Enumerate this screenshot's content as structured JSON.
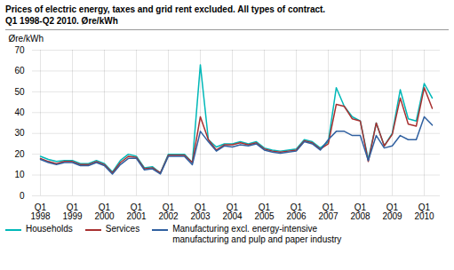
{
  "chart_data": {
    "type": "line",
    "title": "Prices of electric energy, taxes and grid rent excluded. All types of contract.",
    "subtitle": "Q1 1998-Q2 2010. Øre/kWh",
    "y_label": "Øre/kWh",
    "categories": [
      "Q1\n1998",
      null,
      null,
      null,
      "Q1\n1999",
      null,
      null,
      null,
      "Q1\n2000",
      null,
      null,
      null,
      "Q1\n2001",
      null,
      null,
      null,
      "Q1\n2002",
      null,
      null,
      null,
      "Q1\n2003",
      null,
      null,
      null,
      "Q1\n2004",
      null,
      null,
      null,
      "Q1\n2005",
      null,
      null,
      null,
      "Q1\n2006",
      null,
      null,
      null,
      "Q1\n2007",
      null,
      null,
      null,
      "Q1\n2008",
      null,
      null,
      null,
      "Q1\n2009",
      null,
      null,
      null,
      "Q1\n2010",
      null
    ],
    "series": [
      {
        "name": "Households",
        "color": "#00B8B8",
        "values": [
          19,
          17.5,
          16.5,
          17,
          17,
          15.5,
          15.5,
          17,
          15.5,
          11.5,
          17,
          20,
          19,
          13.5,
          14,
          11,
          20,
          20,
          20,
          16,
          63,
          27,
          23.5,
          25,
          25,
          26,
          25,
          26,
          23,
          22,
          21.5,
          22,
          22.5,
          27,
          26,
          23,
          26,
          52,
          43,
          38,
          36,
          17.5,
          35,
          24,
          30,
          51,
          37,
          36,
          54,
          47
        ]
      },
      {
        "name": "Services",
        "color": "#A83030",
        "values": [
          18,
          16.5,
          15.5,
          16.5,
          16.5,
          15,
          15,
          16.5,
          15,
          11,
          16,
          19,
          18.5,
          13,
          13.5,
          11,
          19.5,
          19.5,
          19.5,
          16,
          38,
          27,
          22,
          24.5,
          24.5,
          25.5,
          24.5,
          25.5,
          22.5,
          21.5,
          21,
          21.5,
          22,
          26.5,
          25.5,
          22.5,
          25,
          44,
          43,
          37,
          36,
          16.5,
          35,
          24,
          29.5,
          47,
          34.5,
          33.5,
          52,
          42
        ]
      },
      {
        "name": "Manufacturing excl. energy-intensive\nmanufacturing and pulp and paper industry",
        "color": "#3060A0",
        "values": [
          17.5,
          16,
          15,
          16,
          16,
          14.5,
          14.5,
          16,
          14.5,
          10.5,
          15,
          18,
          18,
          12.5,
          13,
          10.5,
          19,
          19,
          19,
          15,
          31,
          26,
          21.5,
          24,
          23.5,
          24.5,
          24,
          25,
          22,
          21,
          20.5,
          21,
          21.5,
          26,
          25,
          22,
          27,
          31,
          31,
          29,
          29,
          17,
          29,
          23,
          24,
          29,
          27,
          27,
          38,
          34
        ]
      }
    ],
    "ylim": [
      0,
      70
    ],
    "yticks": [
      0,
      10,
      20,
      30,
      40,
      50,
      60,
      70
    ],
    "grid": true,
    "legend": "bottom"
  }
}
